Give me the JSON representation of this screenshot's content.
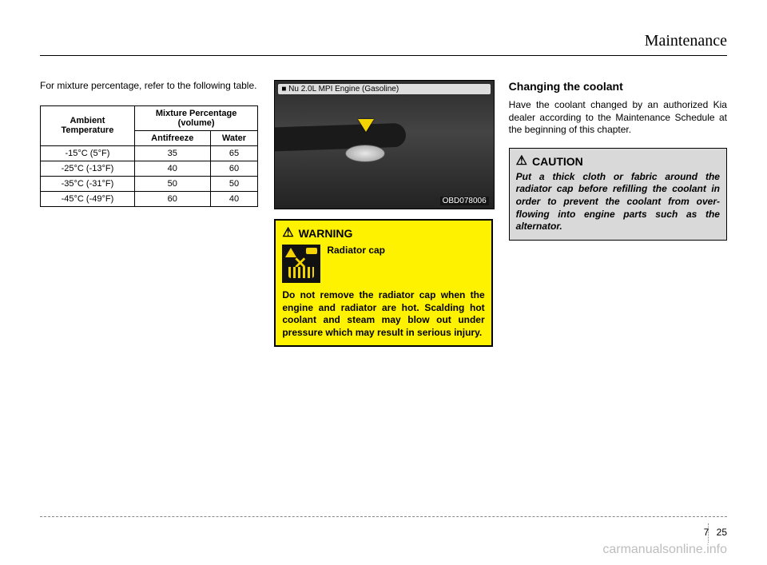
{
  "header": {
    "section_title": "Maintenance"
  },
  "left": {
    "intro": "For mixture percentage, refer to the following table.",
    "table": {
      "header_col1": "Ambient Temperature",
      "header_col2": "Mixture Percentage (volume)",
      "subhead_antifreeze": "Antifreeze",
      "subhead_water": "Water",
      "rows": [
        {
          "temp": "-15°C (5°F)",
          "antifreeze": "35",
          "water": "65"
        },
        {
          "temp": "-25°C (-13°F)",
          "antifreeze": "40",
          "water": "60"
        },
        {
          "temp": "-35°C (-31°F)",
          "antifreeze": "50",
          "water": "50"
        },
        {
          "temp": "-45°C (-49°F)",
          "antifreeze": "60",
          "water": "40"
        }
      ]
    }
  },
  "center": {
    "engine_label": "■ Nu 2.0L MPI Engine (Gasoline)",
    "image_code": "OBD078006",
    "warning_head": "WARNING",
    "warning_sub_title": "Radiator cap",
    "warning_text": "Do not remove the radiator cap when the engine and radiator are hot. Scalding hot coolant and steam may blow out under pressure which may result in serious injury."
  },
  "right": {
    "heading": "Changing the coolant",
    "para": "Have the coolant changed by an authorized Kia dealer according to the Maintenance Schedule at the beginning of this chapter.",
    "caution_head": "CAUTION",
    "caution_text": "Put a thick cloth or fabric around the radiator cap before refilling the coolant in order to prevent the coolant from over-flowing into engine parts such as the alternator."
  },
  "footer": {
    "section_num": "7",
    "page_num": "25",
    "watermark": "carmanualsonline.info"
  },
  "colors": {
    "warning_bg": "#fff200",
    "caution_bg": "#d9d9d9",
    "watermark_color": "#bdbdbd"
  }
}
